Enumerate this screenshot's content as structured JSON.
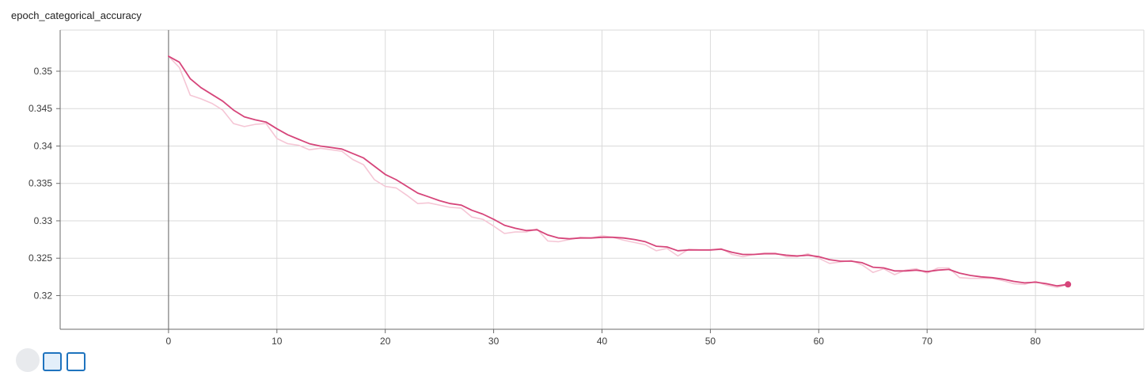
{
  "card": {
    "title": "epoch_categorical_accuracy"
  },
  "colors": {
    "smoothed": "#d6457a",
    "raw": "#f5c6d5",
    "grid": "#dadada",
    "axis": "#6b6b6b",
    "zero_line": "#7a7a7a"
  },
  "chart_data": {
    "type": "line",
    "title": "epoch_categorical_accuracy",
    "xlabel": "",
    "ylabel": "",
    "xlim": [
      -10,
      90
    ],
    "ylim": [
      0.3155,
      0.3555
    ],
    "x_ticks": [
      0,
      10,
      20,
      30,
      40,
      50,
      60,
      70,
      80
    ],
    "y_ticks": [
      0.32,
      0.325,
      0.33,
      0.335,
      0.34,
      0.345,
      0.35
    ],
    "y_tick_labels": [
      "0.32",
      "0.325",
      "0.33",
      "0.335",
      "0.34",
      "0.345",
      "0.35"
    ],
    "grid": true,
    "legend": "none",
    "series": [
      {
        "role": "smoothed",
        "x": [
          0,
          1,
          2,
          3,
          4,
          5,
          6,
          7,
          8,
          9,
          10,
          11,
          12,
          13,
          14,
          15,
          16,
          17,
          18,
          19,
          20,
          21,
          22,
          23,
          24,
          25,
          26,
          27,
          28,
          29,
          30,
          31,
          32,
          33,
          34,
          35,
          36,
          37,
          38,
          39,
          40,
          41,
          42,
          43,
          44,
          45,
          46,
          47,
          48,
          49,
          50,
          51,
          52,
          53,
          54,
          55,
          56,
          57,
          58,
          59,
          60,
          61,
          62,
          63,
          64,
          65,
          66,
          67,
          68,
          69,
          70,
          71,
          72,
          73,
          74,
          75,
          76,
          77,
          78,
          79,
          80,
          81,
          82,
          83
        ],
        "values": [
          0.352,
          0.3512,
          0.349,
          0.3478,
          0.3469,
          0.346,
          0.3448,
          0.3439,
          0.3435,
          0.3432,
          0.3423,
          0.3415,
          0.3409,
          0.3403,
          0.34,
          0.3398,
          0.3396,
          0.339,
          0.3384,
          0.3373,
          0.3362,
          0.3355,
          0.3346,
          0.3337,
          0.3332,
          0.3327,
          0.3323,
          0.3321,
          0.3314,
          0.3309,
          0.3302,
          0.3294,
          0.329,
          0.3287,
          0.3288,
          0.3281,
          0.3277,
          0.3276,
          0.3277,
          0.3277,
          0.3278,
          0.3278,
          0.3277,
          0.3275,
          0.3272,
          0.3266,
          0.3265,
          0.326,
          0.3261,
          0.3261,
          0.3261,
          0.3262,
          0.3258,
          0.3255,
          0.3255,
          0.3256,
          0.3256,
          0.3254,
          0.3253,
          0.3254,
          0.3252,
          0.3248,
          0.3246,
          0.3246,
          0.3244,
          0.3238,
          0.3237,
          0.3233,
          0.3233,
          0.3234,
          0.3232,
          0.3234,
          0.3235,
          0.323,
          0.3227,
          0.3225,
          0.3224,
          0.3222,
          0.3219,
          0.3217,
          0.3218,
          0.3216,
          0.3213,
          0.3215
        ]
      },
      {
        "role": "raw",
        "x": [
          0,
          1,
          2,
          3,
          4,
          5,
          6,
          7,
          8,
          9,
          10,
          11,
          12,
          13,
          14,
          15,
          16,
          17,
          18,
          19,
          20,
          21,
          22,
          23,
          24,
          25,
          26,
          27,
          28,
          29,
          30,
          31,
          32,
          33,
          34,
          35,
          36,
          37,
          38,
          39,
          40,
          41,
          42,
          43,
          44,
          45,
          46,
          47,
          48,
          49,
          50,
          51,
          52,
          53,
          54,
          55,
          56,
          57,
          58,
          59,
          60,
          61,
          62,
          63,
          64,
          65,
          66,
          67,
          68,
          69,
          70,
          71,
          72,
          73,
          74,
          75,
          76,
          77,
          78,
          79,
          80,
          81,
          82,
          83
        ],
        "values": [
          0.352,
          0.3505,
          0.3468,
          0.3463,
          0.3457,
          0.3448,
          0.343,
          0.3426,
          0.3429,
          0.343,
          0.341,
          0.3403,
          0.3401,
          0.3395,
          0.3397,
          0.3395,
          0.3393,
          0.3382,
          0.3375,
          0.3355,
          0.3346,
          0.3344,
          0.3334,
          0.3323,
          0.3324,
          0.3321,
          0.3318,
          0.3317,
          0.3305,
          0.3302,
          0.3293,
          0.3283,
          0.3285,
          0.3285,
          0.3289,
          0.3273,
          0.3272,
          0.3275,
          0.3278,
          0.3277,
          0.328,
          0.3278,
          0.3274,
          0.3271,
          0.3268,
          0.326,
          0.3263,
          0.3253,
          0.3262,
          0.3261,
          0.3261,
          0.3263,
          0.3255,
          0.3252,
          0.3255,
          0.3257,
          0.3257,
          0.3252,
          0.3252,
          0.3256,
          0.325,
          0.3243,
          0.3245,
          0.3247,
          0.3241,
          0.3231,
          0.3236,
          0.3228,
          0.3234,
          0.3236,
          0.323,
          0.3237,
          0.3237,
          0.3224,
          0.3223,
          0.3223,
          0.3223,
          0.322,
          0.3216,
          0.3215,
          0.3219,
          0.3214,
          0.3211,
          0.3215
        ]
      }
    ]
  }
}
